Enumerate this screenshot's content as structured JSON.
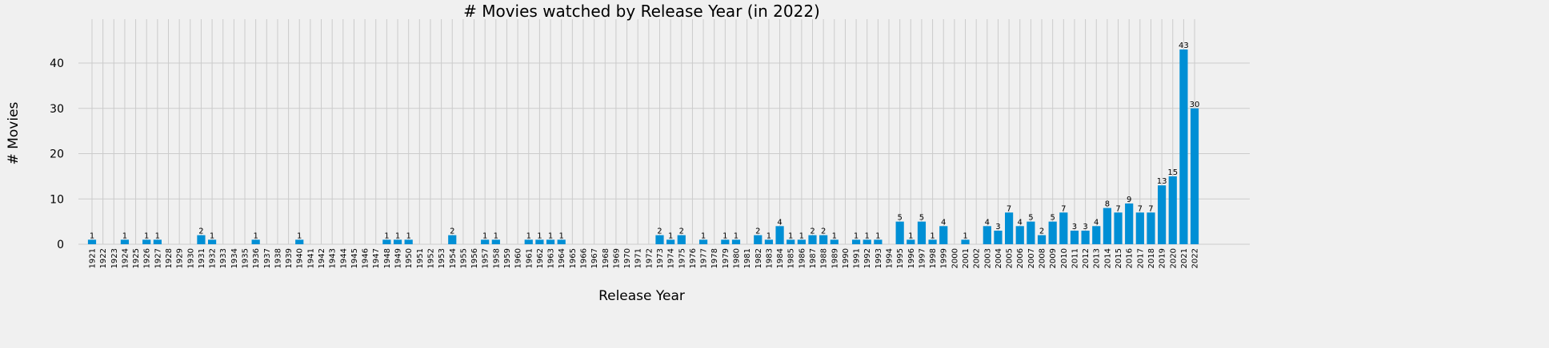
{
  "chart_data": {
    "type": "bar",
    "title": "# Movies watched by Release Year (in 2022)",
    "xlabel": "Release Year",
    "ylabel": "# Movies",
    "ylim": [
      0,
      50
    ],
    "yticks": [
      0,
      10,
      20,
      30,
      40
    ],
    "grid": true,
    "bar_color": "#008fd5",
    "background": "#f0f0f0",
    "categories": [
      "1921",
      "1922",
      "1923",
      "1924",
      "1925",
      "1926",
      "1927",
      "1928",
      "1929",
      "1930",
      "1931",
      "1932",
      "1933",
      "1934",
      "1935",
      "1936",
      "1937",
      "1938",
      "1939",
      "1940",
      "1941",
      "1942",
      "1943",
      "1944",
      "1945",
      "1946",
      "1947",
      "1948",
      "1949",
      "1950",
      "1951",
      "1952",
      "1953",
      "1954",
      "1955",
      "1956",
      "1957",
      "1958",
      "1959",
      "1960",
      "1961",
      "1962",
      "1963",
      "1964",
      "1965",
      "1966",
      "1967",
      "1968",
      "1969",
      "1970",
      "1971",
      "1972",
      "1973",
      "1974",
      "1975",
      "1976",
      "1977",
      "1978",
      "1979",
      "1980",
      "1981",
      "1982",
      "1983",
      "1984",
      "1985",
      "1986",
      "1987",
      "1988",
      "1989",
      "1990",
      "1991",
      "1992",
      "1993",
      "1994",
      "1995",
      "1996",
      "1997",
      "1998",
      "1999",
      "2000",
      "2001",
      "2002",
      "2003",
      "2004",
      "2005",
      "2006",
      "2007",
      "2008",
      "2009",
      "2010",
      "2011",
      "2012",
      "2013",
      "2014",
      "2015",
      "2016",
      "2017",
      "2018",
      "2019",
      "2020",
      "2021",
      "2022"
    ],
    "values": [
      1,
      0,
      0,
      1,
      0,
      1,
      1,
      0,
      0,
      0,
      2,
      1,
      0,
      0,
      0,
      1,
      0,
      0,
      0,
      1,
      0,
      0,
      0,
      0,
      0,
      0,
      0,
      1,
      1,
      1,
      0,
      0,
      0,
      2,
      0,
      0,
      1,
      1,
      0,
      0,
      1,
      1,
      1,
      1,
      0,
      0,
      0,
      0,
      0,
      0,
      0,
      0,
      2,
      1,
      2,
      0,
      1,
      0,
      1,
      1,
      0,
      2,
      1,
      4,
      1,
      1,
      2,
      2,
      1,
      0,
      1,
      1,
      1,
      0,
      5,
      1,
      5,
      1,
      4,
      0,
      1,
      0,
      4,
      3,
      7,
      4,
      5,
      2,
      5,
      7,
      3,
      3,
      4,
      8,
      7,
      9,
      7,
      7,
      13,
      15,
      43,
      30
    ]
  }
}
